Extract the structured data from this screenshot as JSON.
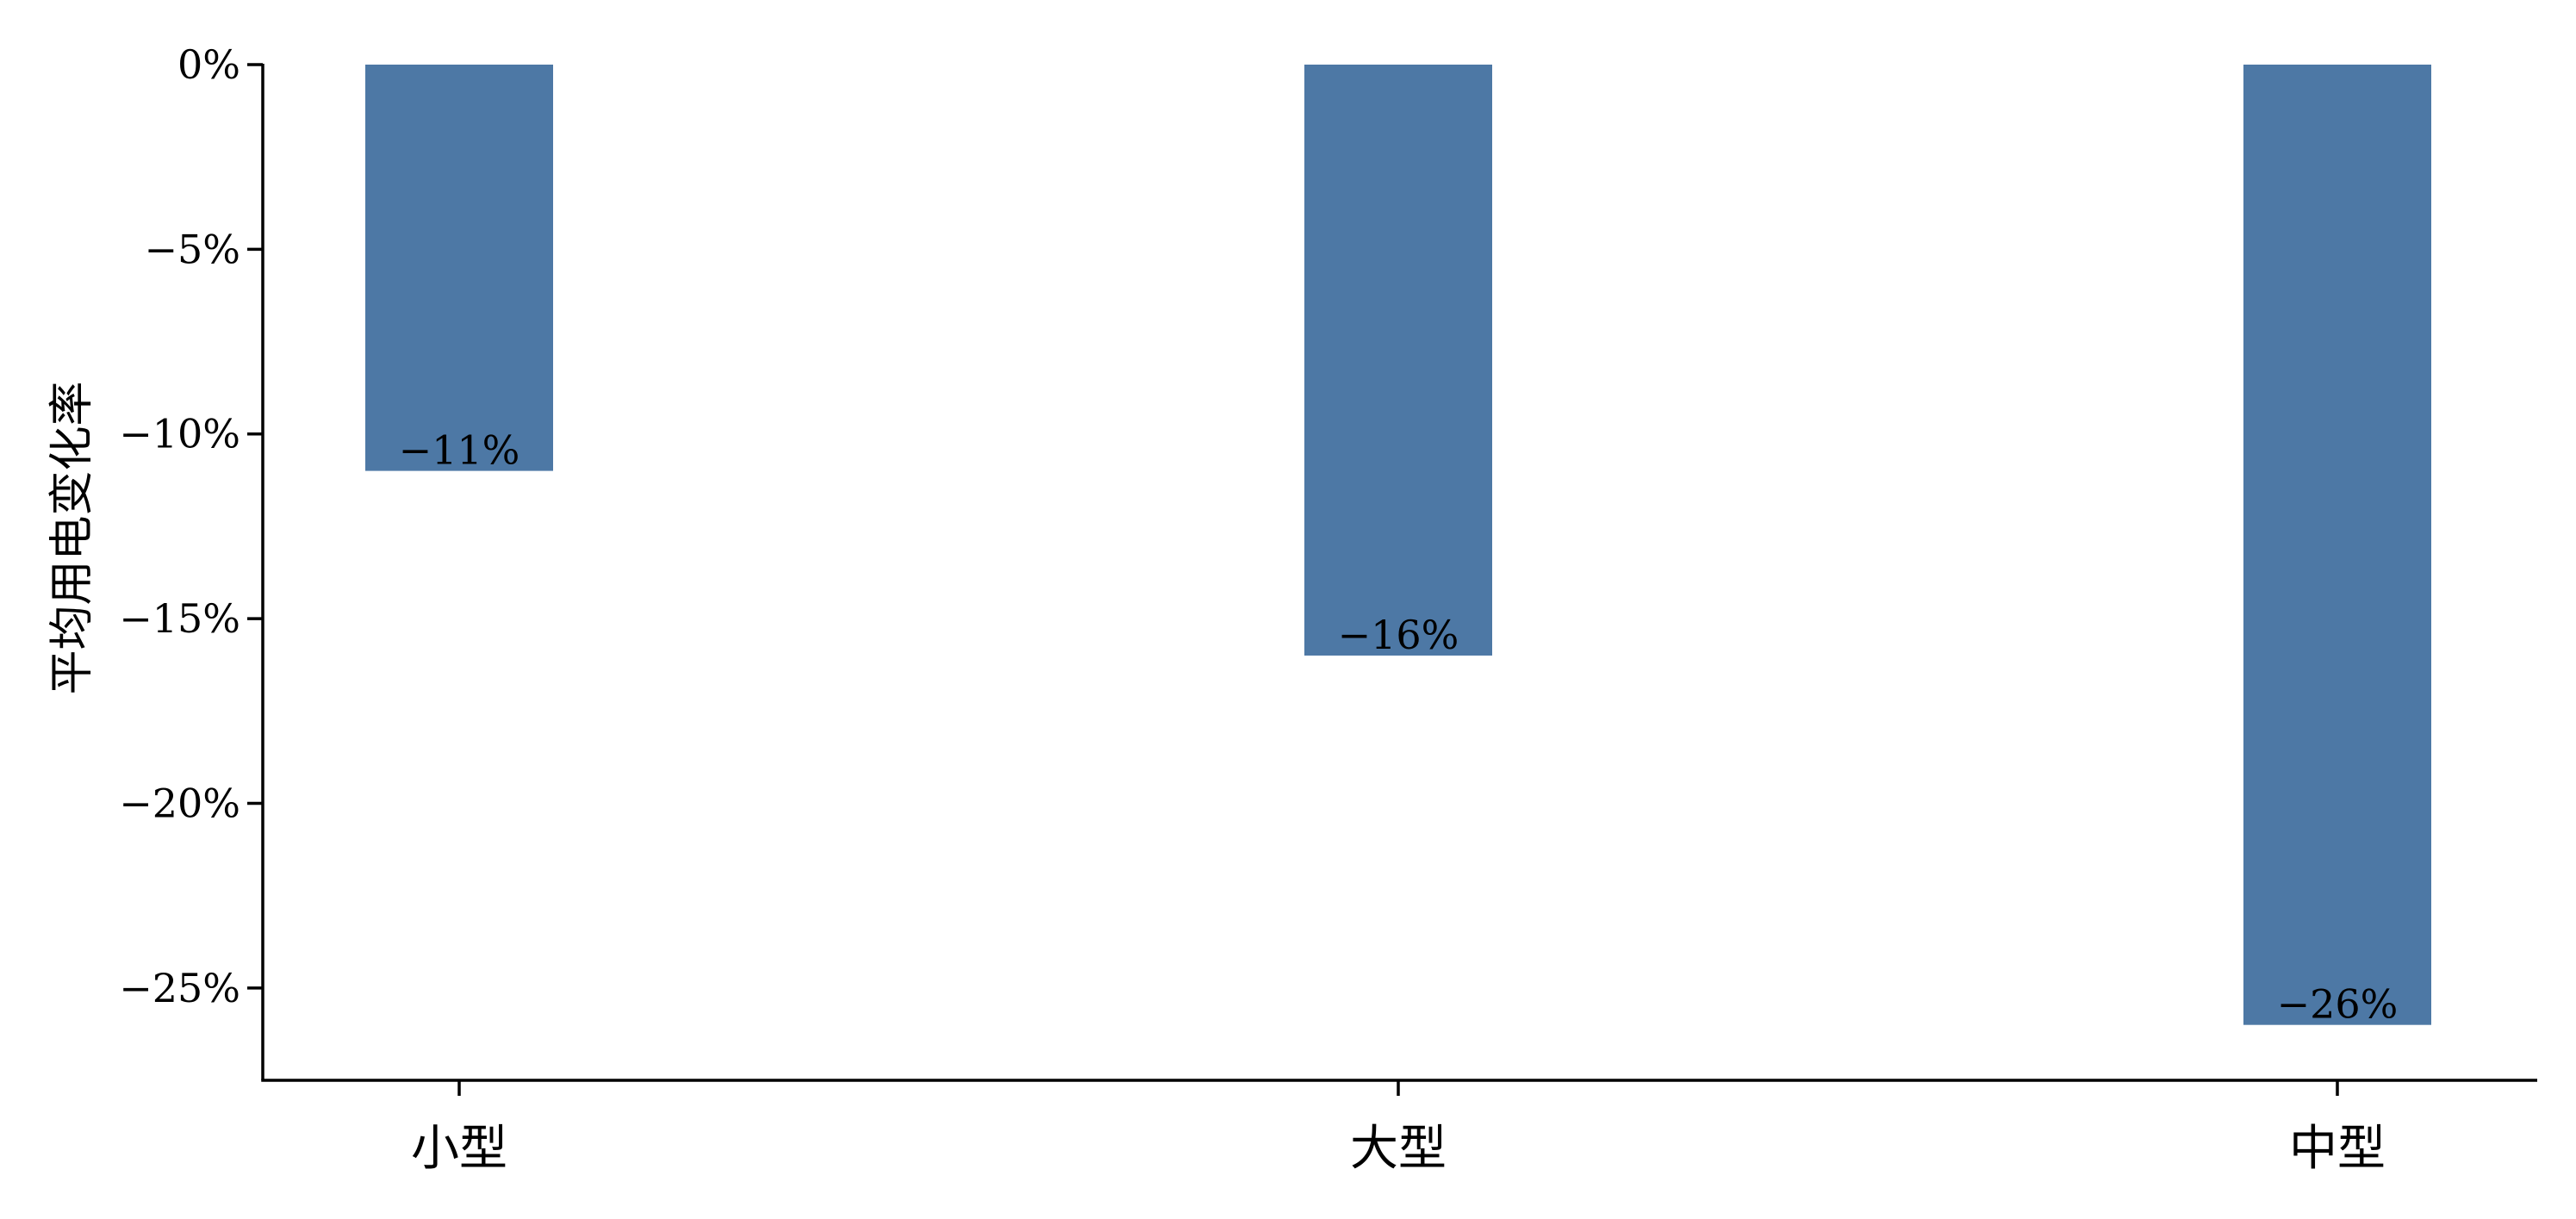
{
  "colors": {
    "bar": "#4d78a5",
    "axis": "#000000",
    "text": "#000000",
    "background": "#ffffff"
  },
  "chart_data": {
    "type": "bar",
    "title": "",
    "xlabel": "",
    "ylabel": "平均用电变化率",
    "categories": [
      "小型",
      "大型",
      "中型"
    ],
    "values": [
      -11,
      -16,
      -26
    ],
    "value_labels": [
      "−11%",
      "−16%",
      "−26%"
    ],
    "unit": "%",
    "ylim": [
      -27.5,
      0
    ],
    "yticks": [
      0,
      -5,
      -10,
      -15,
      -20,
      -25
    ],
    "ytick_labels": [
      "0%",
      "−5%",
      "−10%",
      "−15%",
      "−20%",
      "−25%"
    ],
    "grid": false,
    "legend": "none"
  }
}
